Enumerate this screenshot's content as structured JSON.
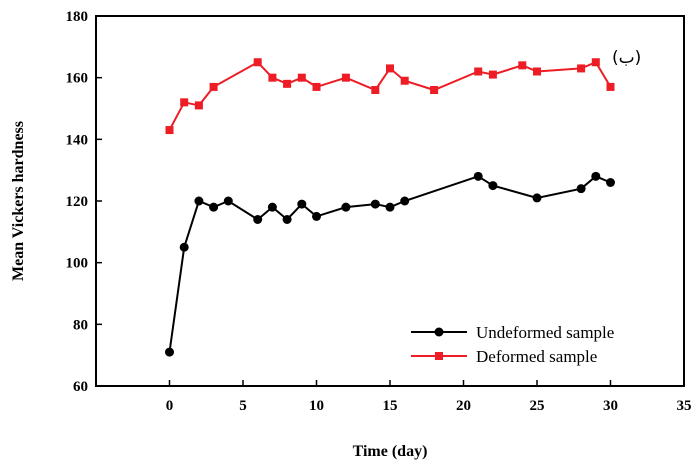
{
  "chart_data": {
    "type": "line",
    "title": "",
    "xlabel": "Time (day)",
    "ylabel": "Mean Vickers hardness",
    "xlim": [
      -5,
      35
    ],
    "ylim": [
      60,
      180
    ],
    "xticks": [
      0,
      5,
      10,
      15,
      20,
      25,
      30,
      35
    ],
    "yticks": [
      60,
      80,
      100,
      120,
      140,
      160,
      180
    ],
    "grid": false,
    "legend_position": "bottom-right",
    "annotation": "(ب)",
    "series": [
      {
        "name": "Undeformed sample",
        "color": "#000000",
        "marker": "circle",
        "x": [
          0,
          1,
          2,
          3,
          4,
          6,
          7,
          8,
          9,
          10,
          12,
          14,
          15,
          16,
          21,
          22,
          25,
          28,
          29,
          30
        ],
        "y": [
          71,
          105,
          120,
          118,
          120,
          114,
          118,
          114,
          119,
          115,
          118,
          119,
          118,
          120,
          128,
          125,
          121,
          124,
          128,
          126
        ]
      },
      {
        "name": "Deformed sample",
        "color": "#ee1c24",
        "marker": "square",
        "x": [
          0,
          1,
          2,
          3,
          6,
          7,
          8,
          9,
          10,
          12,
          14,
          15,
          16,
          18,
          21,
          22,
          24,
          25,
          28,
          29,
          30
        ],
        "y": [
          143,
          152,
          151,
          157,
          165,
          160,
          158,
          160,
          157,
          160,
          156,
          163,
          159,
          156,
          162,
          161,
          164,
          162,
          163,
          165,
          157
        ]
      }
    ]
  }
}
